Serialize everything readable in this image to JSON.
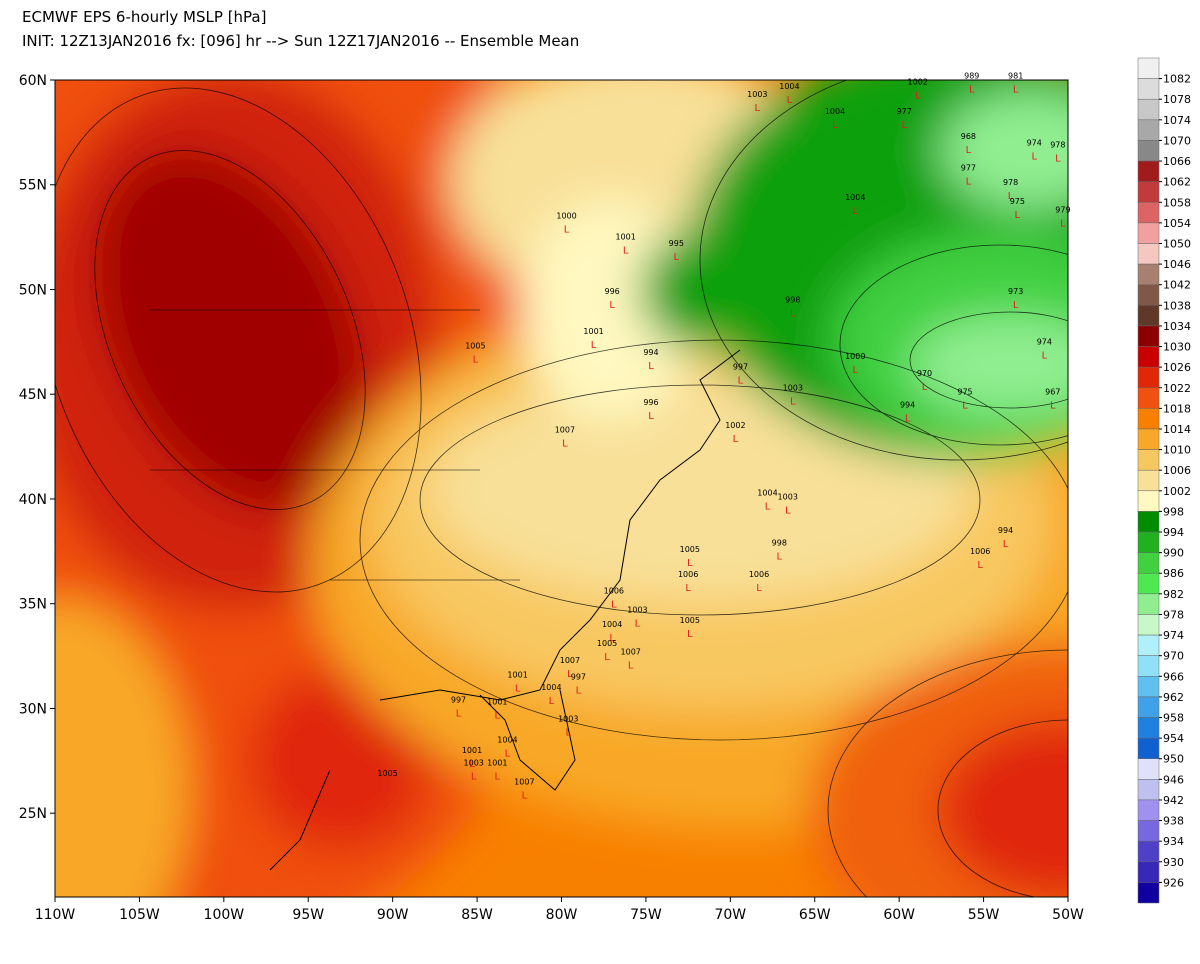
{
  "chart_data": {
    "type": "map",
    "title": "ECMWF EPS 6-hourly MSLP [hPa]",
    "subtitle": "INIT: 12Z13JAN2016 fx: [096] hr --> Sun 12Z17JAN2016 -- Ensemble Mean",
    "xlim": [
      -110,
      -50
    ],
    "ylim": [
      21,
      60
    ],
    "xticks": [
      {
        "value": -110,
        "label": "110W"
      },
      {
        "value": -105,
        "label": "105W"
      },
      {
        "value": -100,
        "label": "100W"
      },
      {
        "value": -95,
        "label": "95W"
      },
      {
        "value": -90,
        "label": "90W"
      },
      {
        "value": -85,
        "label": "85W"
      },
      {
        "value": -80,
        "label": "80W"
      },
      {
        "value": -75,
        "label": "75W"
      },
      {
        "value": -70,
        "label": "70W"
      },
      {
        "value": -65,
        "label": "65W"
      },
      {
        "value": -60,
        "label": "60W"
      },
      {
        "value": -55,
        "label": "55W"
      },
      {
        "value": -50,
        "label": "50W"
      }
    ],
    "yticks": [
      {
        "value": 60,
        "label": "60N"
      },
      {
        "value": 55,
        "label": "55N"
      },
      {
        "value": 50,
        "label": "50N"
      },
      {
        "value": 45,
        "label": "45N"
      },
      {
        "value": 40,
        "label": "40N"
      },
      {
        "value": 35,
        "label": "35N"
      },
      {
        "value": 30,
        "label": "30N"
      },
      {
        "value": 25,
        "label": "25N"
      }
    ],
    "colorbar": {
      "levels": [
        1082,
        1078,
        1074,
        1070,
        1066,
        1062,
        1058,
        1054,
        1050,
        1046,
        1042,
        1038,
        1034,
        1030,
        1026,
        1022,
        1018,
        1014,
        1010,
        1006,
        1002,
        998,
        994,
        990,
        986,
        982,
        978,
        974,
        970,
        966,
        962,
        958,
        954,
        950,
        946,
        942,
        938,
        934,
        930,
        926
      ],
      "colors": [
        "#f0f0f0",
        "#dcdcdc",
        "#c8c8c8",
        "#a8a8a8",
        "#888888",
        "#a01c1c",
        "#c03c3c",
        "#dc6464",
        "#f0a0a0",
        "#f4c8c0",
        "#a88070",
        "#805848",
        "#603828",
        "#8c0000",
        "#c80000",
        "#e02808",
        "#f05010",
        "#f88000",
        "#f8a828",
        "#f8c860",
        "#f8e098",
        "#fff8c0",
        "#008c00",
        "#20b020",
        "#40d040",
        "#50e850",
        "#90ee90",
        "#c8f8c8",
        "#b0f0f8",
        "#90e0f8",
        "#60c0f0",
        "#40a0e8",
        "#2080e0",
        "#1060d0",
        "#e0e0f8",
        "#c0c0f0",
        "#a090f0",
        "#7868e0",
        "#5040c8",
        "#3828b8",
        "#1000a0"
      ]
    },
    "low_symbol": "L",
    "lows": [
      {
        "value": 989,
        "lon": -55.7,
        "lat": 59.6
      },
      {
        "value": 981,
        "lon": -53.1,
        "lat": 59.6
      },
      {
        "value": 1002,
        "lon": -58.9,
        "lat": 59.3
      },
      {
        "value": 977,
        "lon": -59.7,
        "lat": 57.9
      },
      {
        "value": 968,
        "lon": -55.9,
        "lat": 56.7
      },
      {
        "value": 974,
        "lon": -52.0,
        "lat": 56.4
      },
      {
        "value": 978,
        "lon": -50.6,
        "lat": 56.3
      },
      {
        "value": 977,
        "lon": -55.9,
        "lat": 55.2
      },
      {
        "value": 978,
        "lon": -53.4,
        "lat": 54.5
      },
      {
        "value": 975,
        "lon": -53.0,
        "lat": 53.6
      },
      {
        "value": 979,
        "lon": -50.3,
        "lat": 53.2
      },
      {
        "value": 1003,
        "lon": -68.4,
        "lat": 58.7
      },
      {
        "value": 1004,
        "lon": -66.5,
        "lat": 59.1
      },
      {
        "value": 1004,
        "lon": -63.8,
        "lat": 57.9
      },
      {
        "value": 1004,
        "lon": -62.6,
        "lat": 53.8
      },
      {
        "value": 1000,
        "lon": -79.7,
        "lat": 52.9
      },
      {
        "value": 1001,
        "lon": -76.2,
        "lat": 51.9
      },
      {
        "value": 995,
        "lon": -73.2,
        "lat": 51.6
      },
      {
        "value": 996,
        "lon": -77.0,
        "lat": 49.3
      },
      {
        "value": 998,
        "lon": -66.3,
        "lat": 48.9
      },
      {
        "value": 1001,
        "lon": -78.1,
        "lat": 47.4
      },
      {
        "value": 994,
        "lon": -74.7,
        "lat": 46.4
      },
      {
        "value": 997,
        "lon": -69.4,
        "lat": 45.7
      },
      {
        "value": 1003,
        "lon": -66.3,
        "lat": 44.7
      },
      {
        "value": 1005,
        "lon": -85.1,
        "lat": 46.7
      },
      {
        "value": 996,
        "lon": -74.7,
        "lat": 44.0
      },
      {
        "value": 1007,
        "lon": -79.8,
        "lat": 42.7
      },
      {
        "value": 1002,
        "lon": -69.7,
        "lat": 42.9
      },
      {
        "value": 973,
        "lon": -53.1,
        "lat": 49.3
      },
      {
        "value": 994,
        "lon": -59.5,
        "lat": 43.9
      },
      {
        "value": 970,
        "lon": -58.5,
        "lat": 45.4
      },
      {
        "value": 975,
        "lon": -56.1,
        "lat": 44.5
      },
      {
        "value": 974,
        "lon": -51.4,
        "lat": 46.9
      },
      {
        "value": 967,
        "lon": -50.9,
        "lat": 44.5
      },
      {
        "value": 1000,
        "lon": -62.6,
        "lat": 46.2
      },
      {
        "value": 1004,
        "lon": -67.8,
        "lat": 39.7
      },
      {
        "value": 1003,
        "lon": -66.6,
        "lat": 39.5
      },
      {
        "value": 994,
        "lon": -53.7,
        "lat": 37.9
      },
      {
        "value": 1006,
        "lon": -55.2,
        "lat": 36.9
      },
      {
        "value": 998,
        "lon": -67.1,
        "lat": 37.3
      },
      {
        "value": 1006,
        "lon": -68.3,
        "lat": 35.8
      },
      {
        "value": 1005,
        "lon": -72.4,
        "lat": 37.0
      },
      {
        "value": 1006,
        "lon": -72.5,
        "lat": 35.8
      },
      {
        "value": 1005,
        "lon": -72.4,
        "lat": 33.6
      },
      {
        "value": 1006,
        "lon": -76.9,
        "lat": 35.0
      },
      {
        "value": 1003,
        "lon": -75.5,
        "lat": 34.1
      },
      {
        "value": 1004,
        "lon": -77.0,
        "lat": 33.4
      },
      {
        "value": 1005,
        "lon": -77.3,
        "lat": 32.5
      },
      {
        "value": 1007,
        "lon": -75.9,
        "lat": 32.1
      },
      {
        "value": 1001,
        "lon": -82.6,
        "lat": 31.0
      },
      {
        "value": 1007,
        "lon": -79.5,
        "lat": 31.7
      },
      {
        "value": 997,
        "lon": -79.0,
        "lat": 30.9
      },
      {
        "value": 1004,
        "lon": -80.6,
        "lat": 30.4
      },
      {
        "value": 1001,
        "lon": -83.8,
        "lat": 29.7
      },
      {
        "value": 997,
        "lon": -86.1,
        "lat": 29.8
      },
      {
        "value": 1003,
        "lon": -79.6,
        "lat": 28.9
      },
      {
        "value": 1004,
        "lon": -83.2,
        "lat": 27.9
      },
      {
        "value": 1001,
        "lon": -85.3,
        "lat": 27.4
      },
      {
        "value": 1003,
        "lon": -85.2,
        "lat": 26.8
      },
      {
        "value": 1001,
        "lon": -83.8,
        "lat": 26.8
      },
      {
        "value": 1007,
        "lon": -82.2,
        "lat": 25.9
      },
      {
        "value": 1005,
        "lon": -90.3,
        "lat": 26.3
      }
    ]
  }
}
